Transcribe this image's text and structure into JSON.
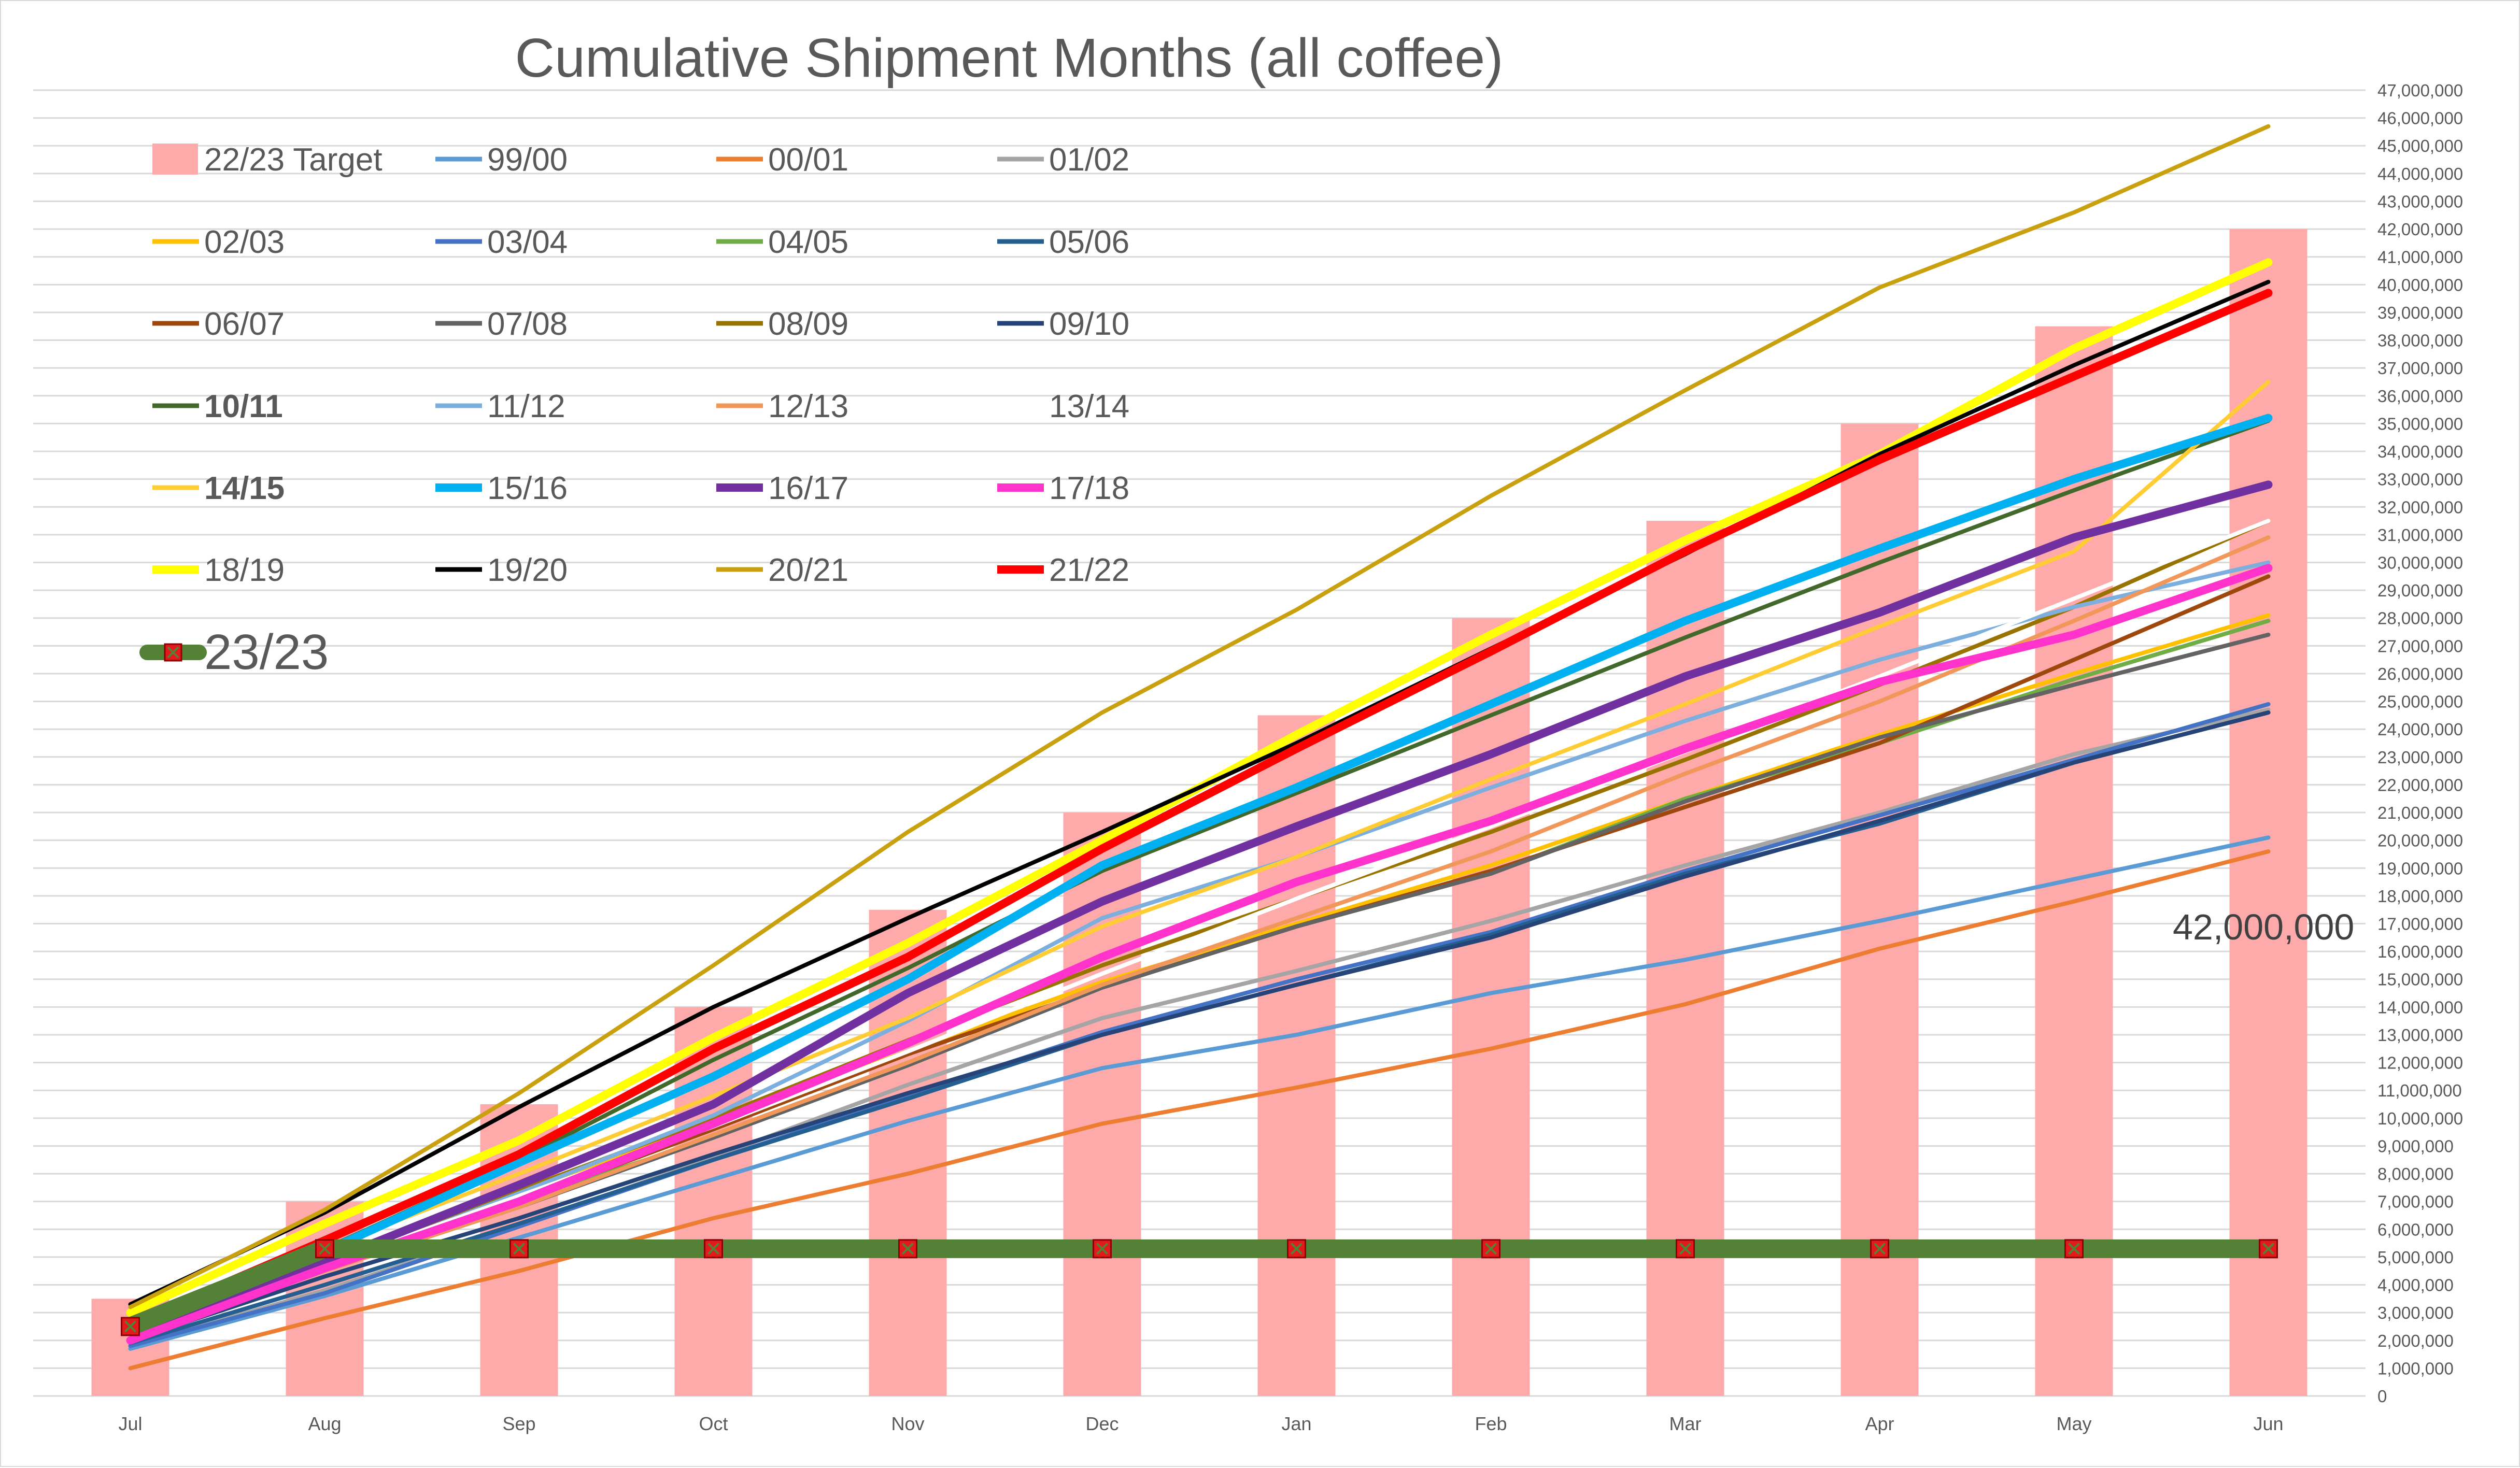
{
  "chart_data": {
    "type": "line",
    "title": "Cumulative Shipment Months (all coffee)",
    "xlabel": "",
    "ylabel": "",
    "categories": [
      "Jul",
      "Aug",
      "Sep",
      "Oct",
      "Nov",
      "Dec",
      "Jan",
      "Feb",
      "Mar",
      "Apr",
      "May",
      "Jun"
    ],
    "ylim": [
      0,
      47000000
    ],
    "ytick_step": 1000000,
    "grid": true,
    "legend_placement": "top-left",
    "annotation": "42,000,000",
    "target": {
      "name": "22/23 Target",
      "color": "#ffaaaa",
      "values": [
        3500000,
        7000000,
        10500000,
        14000000,
        17500000,
        21000000,
        24500000,
        28000000,
        31500000,
        35000000,
        38500000,
        42000000
      ]
    },
    "series": [
      {
        "name": "99/00",
        "color": "#5b9bd5",
        "width": 8,
        "values": [
          1700000,
          3600000,
          5700000,
          7800000,
          9900000,
          11800000,
          13000000,
          14500000,
          15700000,
          17100000,
          18600000,
          20100000
        ]
      },
      {
        "name": "00/01",
        "color": "#ed7d31",
        "width": 8,
        "values": [
          1000000,
          2800000,
          4500000,
          6400000,
          8000000,
          9800000,
          11100000,
          12500000,
          14100000,
          16100000,
          17800000,
          19600000
        ]
      },
      {
        "name": "01/02",
        "color": "#a5a5a5",
        "width": 8,
        "values": [
          1800000,
          3800000,
          6100000,
          8600000,
          11200000,
          13600000,
          15300000,
          17100000,
          19100000,
          21000000,
          23100000,
          24700000
        ]
      },
      {
        "name": "02/03",
        "color": "#ffc000",
        "width": 8,
        "values": [
          2400000,
          5000000,
          7300000,
          9900000,
          12400000,
          14900000,
          17000000,
          19100000,
          21500000,
          23800000,
          26000000,
          28100000
        ]
      },
      {
        "name": "03/04",
        "color": "#4472c4",
        "width": 8,
        "values": [
          1800000,
          3700000,
          6100000,
          8500000,
          10800000,
          13100000,
          15000000,
          16700000,
          18900000,
          20900000,
          22900000,
          24900000
        ]
      },
      {
        "name": "04/05",
        "color": "#70ad47",
        "width": 8,
        "values": [
          2000000,
          4600000,
          7000000,
          9300000,
          11900000,
          14700000,
          16900000,
          18800000,
          21500000,
          23500000,
          25800000,
          27900000
        ]
      },
      {
        "name": "05/06",
        "color": "#255e91",
        "width": 8,
        "values": [
          1900000,
          4000000,
          6200000,
          8500000,
          10700000,
          13000000,
          14800000,
          16600000,
          18800000,
          20600000,
          22800000,
          24600000
        ]
      },
      {
        "name": "06/07",
        "color": "#9e480e",
        "width": 8,
        "values": [
          2200000,
          4600000,
          7000000,
          9600000,
          12300000,
          14700000,
          16900000,
          18900000,
          21200000,
          23500000,
          26500000,
          29500000
        ]
      },
      {
        "name": "07/08",
        "color": "#636363",
        "width": 8,
        "values": [
          2100000,
          4500000,
          6800000,
          9300000,
          11900000,
          14700000,
          16900000,
          18800000,
          21400000,
          23700000,
          25600000,
          27400000
        ]
      },
      {
        "name": "08/09",
        "color": "#997300",
        "width": 8,
        "values": [
          2300000,
          4800000,
          7400000,
          10000000,
          12800000,
          15500000,
          17900000,
          20300000,
          22900000,
          25600000,
          28400000,
          31500000
        ]
      },
      {
        "name": "09/10",
        "color": "#264478",
        "width": 8,
        "values": [
          2000000,
          4300000,
          6400000,
          8700000,
          10900000,
          13000000,
          14800000,
          16500000,
          18700000,
          20700000,
          22800000,
          24600000
        ]
      },
      {
        "name": "10/11",
        "color": "#43682b",
        "width": 8,
        "bold": true,
        "values": [
          2600000,
          5300000,
          8500000,
          12100000,
          15400000,
          18900000,
          21700000,
          24500000,
          27300000,
          30000000,
          32600000,
          35100000
        ]
      },
      {
        "name": "11/12",
        "color": "#7cafdd",
        "width": 8,
        "values": [
          2100000,
          4600000,
          7300000,
          10100000,
          13500000,
          17200000,
          19400000,
          21900000,
          24300000,
          26500000,
          28400000,
          30000000
        ]
      },
      {
        "name": "12/13",
        "color": "#f1975a",
        "width": 8,
        "values": [
          2200000,
          4500000,
          6800000,
          9400000,
          12000000,
          14800000,
          17200000,
          19600000,
          22400000,
          25000000,
          27900000,
          30900000
        ]
      },
      {
        "name": "13/14",
        "color": "#ffffff",
        "width": 8,
        "values": [
          2200000,
          4700000,
          7200000,
          9700000,
          12400000,
          15200000,
          17900000,
          20500000,
          23200000,
          25900000,
          28700000,
          31500000
        ]
      },
      {
        "name": "14/15",
        "color": "#ffcd33",
        "width": 8,
        "bold": true,
        "values": [
          2400000,
          5300000,
          8000000,
          10800000,
          13600000,
          16900000,
          19400000,
          22200000,
          24900000,
          27700000,
          30400000,
          36500000
        ]
      },
      {
        "name": "15/16",
        "color": "#00b0f0",
        "width": 16,
        "values": [
          2500000,
          5200000,
          8400000,
          11500000,
          15000000,
          19100000,
          21900000,
          24900000,
          27900000,
          30500000,
          33000000,
          35200000
        ]
      },
      {
        "name": "16/17",
        "color": "#7030a0",
        "width": 16,
        "values": [
          2300000,
          4800000,
          7600000,
          10500000,
          14500000,
          17800000,
          20500000,
          23100000,
          25900000,
          28200000,
          30900000,
          32800000
        ]
      },
      {
        "name": "17/18",
        "color": "#ff33cc",
        "width": 16,
        "values": [
          2000000,
          4600000,
          7000000,
          9800000,
          12700000,
          15800000,
          18500000,
          20700000,
          23300000,
          25700000,
          27400000,
          29800000
        ]
      },
      {
        "name": "18/19",
        "color": "#ffff00",
        "width": 16,
        "values": [
          3000000,
          6200000,
          9200000,
          12900000,
          16300000,
          20000000,
          23800000,
          27400000,
          30800000,
          33900000,
          37700000,
          40800000
        ]
      },
      {
        "name": "19/20",
        "color": "#000000",
        "width": 8,
        "values": [
          3300000,
          6600000,
          10400000,
          14000000,
          17200000,
          20300000,
          23500000,
          26900000,
          30300000,
          33900000,
          37100000,
          40100000
        ]
      },
      {
        "name": "20/21",
        "color": "#c9a10e",
        "width": 8,
        "values": [
          3200000,
          6700000,
          10900000,
          15500000,
          20300000,
          24600000,
          28300000,
          32400000,
          36200000,
          39900000,
          42600000,
          45700000
        ]
      },
      {
        "name": "21/22",
        "color": "#ff0000",
        "width": 16,
        "values": [
          2600000,
          5600000,
          8700000,
          12500000,
          15800000,
          19700000,
          23300000,
          26800000,
          30400000,
          33700000,
          36700000,
          39700000
        ]
      },
      {
        "name": "23/23",
        "color": "#538135",
        "width": 36,
        "marker": true,
        "values": [
          2500000,
          5300000,
          5300000,
          5300000,
          5300000,
          5300000,
          5300000,
          5300000,
          5300000,
          5300000,
          5300000,
          5300000
        ]
      }
    ]
  }
}
